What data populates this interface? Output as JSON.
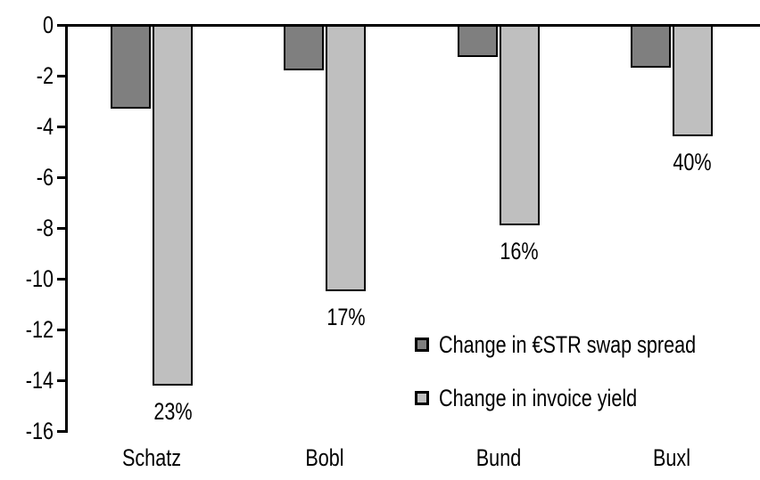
{
  "chart_data": {
    "type": "bar",
    "categories": [
      "Schatz",
      "Bobl",
      "Bund",
      "Buxl"
    ],
    "series": [
      {
        "name": "Change in €STR swap spread",
        "color": "#7f7f7f",
        "values": [
          -3.3,
          -1.8,
          -1.25,
          -1.7
        ]
      },
      {
        "name": "Change in invoice yield",
        "color": "#bfbfbf",
        "values": [
          -14.2,
          -10.5,
          -7.9,
          -4.4
        ]
      }
    ],
    "bar_labels": {
      "series_index": 1,
      "values": [
        "23%",
        "17%",
        "16%",
        "40%"
      ]
    },
    "title": "",
    "xlabel": "",
    "ylabel": "",
    "ylim": [
      -16,
      0
    ],
    "yticks": [
      0,
      -2,
      -4,
      -6,
      -8,
      -10,
      -12,
      -14,
      -16
    ],
    "grid": false,
    "legend_position": "inside-right",
    "bar_border_color": "#000000",
    "axis_color": "#000000",
    "background": "#ffffff"
  }
}
